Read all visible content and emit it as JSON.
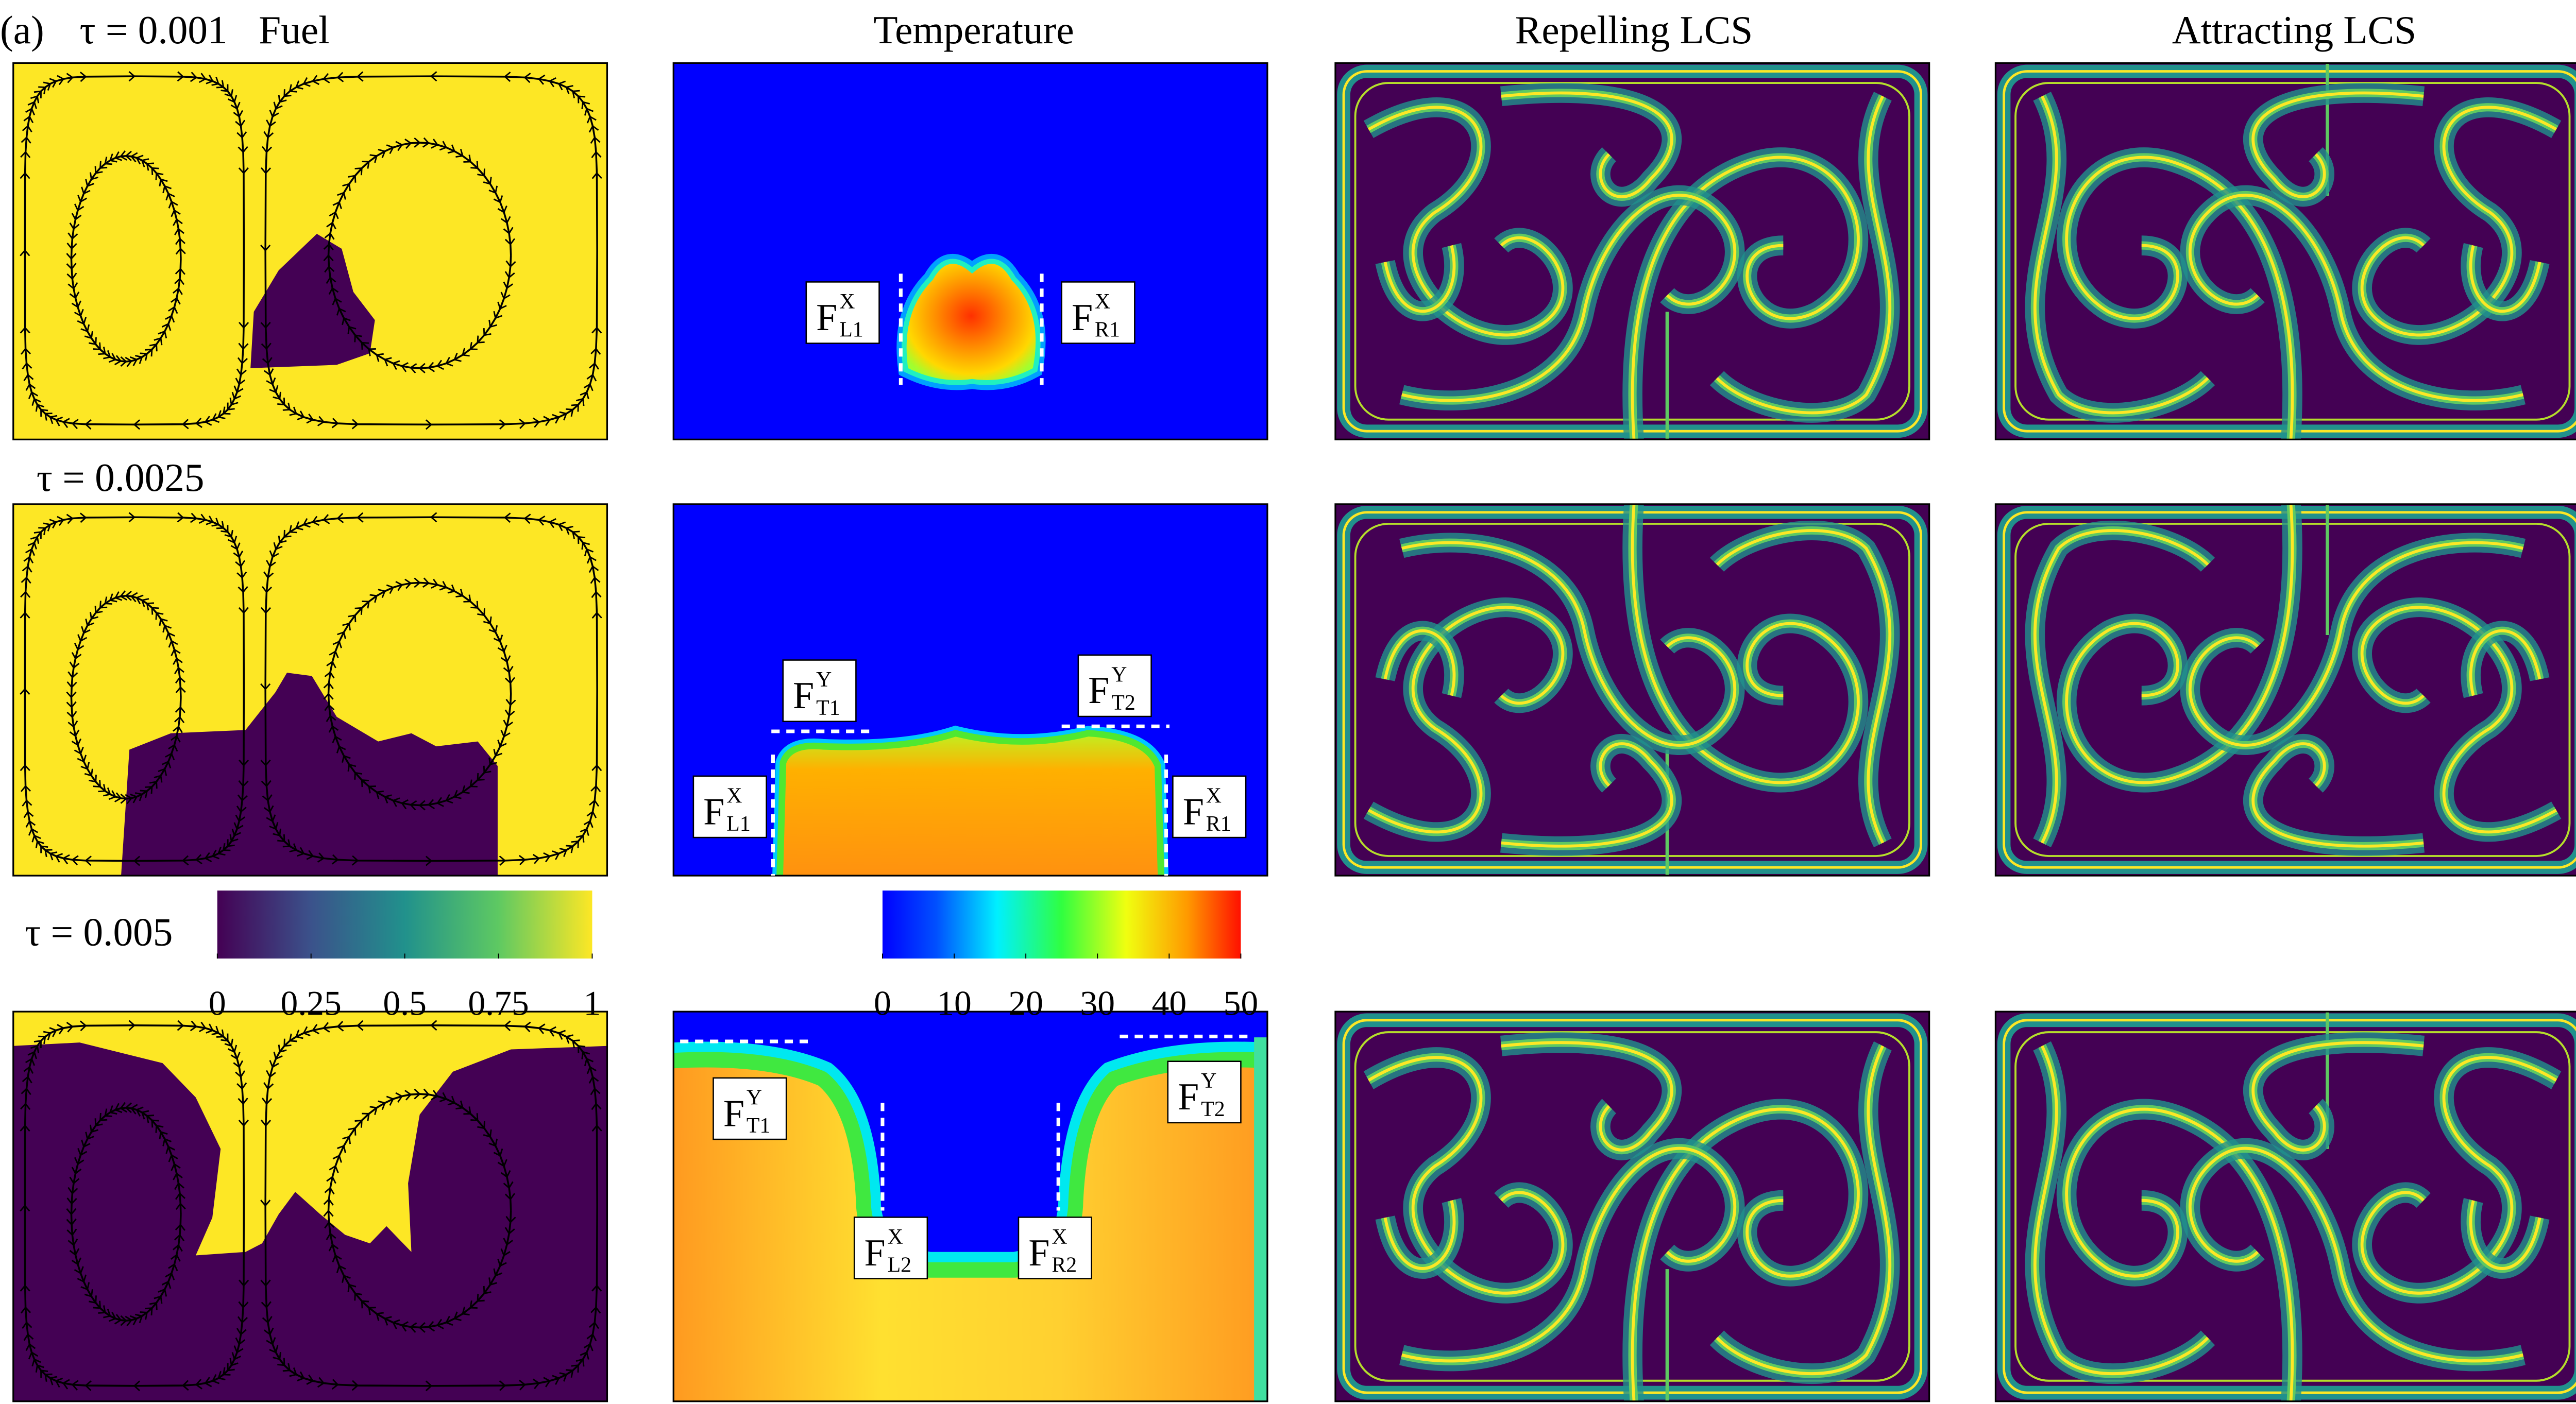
{
  "panel_label": "(a)",
  "column_titles": [
    "Fuel",
    "Temperature",
    "Repelling LCS",
    "Attracting LCS"
  ],
  "rows": [
    {
      "tau": "τ = 0.001"
    },
    {
      "tau": "τ = 0.0025"
    },
    {
      "tau": "τ = 0.005"
    }
  ],
  "colorbars": [
    {
      "range": [
        0,
        1
      ],
      "ticks": [
        0,
        0.25,
        0.5,
        0.75,
        1
      ]
    },
    {
      "range": [
        0,
        50
      ],
      "ticks": [
        0,
        10,
        20,
        30,
        40,
        50
      ]
    }
  ],
  "temperature_labels": [
    [
      {
        "base": "F",
        "sup": "X",
        "sub": "L1"
      },
      {
        "base": "F",
        "sup": "X",
        "sub": "R1"
      }
    ],
    [
      {
        "base": "F",
        "sup": "Y",
        "sub": "T1"
      },
      {
        "base": "F",
        "sup": "Y",
        "sub": "T2"
      },
      {
        "base": "F",
        "sup": "X",
        "sub": "L1"
      },
      {
        "base": "F",
        "sup": "X",
        "sub": "R1"
      }
    ],
    [
      {
        "base": "F",
        "sup": "Y",
        "sub": "T1"
      },
      {
        "base": "F",
        "sup": "Y",
        "sub": "T2"
      },
      {
        "base": "F",
        "sup": "X",
        "sub": "L2"
      },
      {
        "base": "F",
        "sup": "X",
        "sub": "R2"
      }
    ]
  ]
}
